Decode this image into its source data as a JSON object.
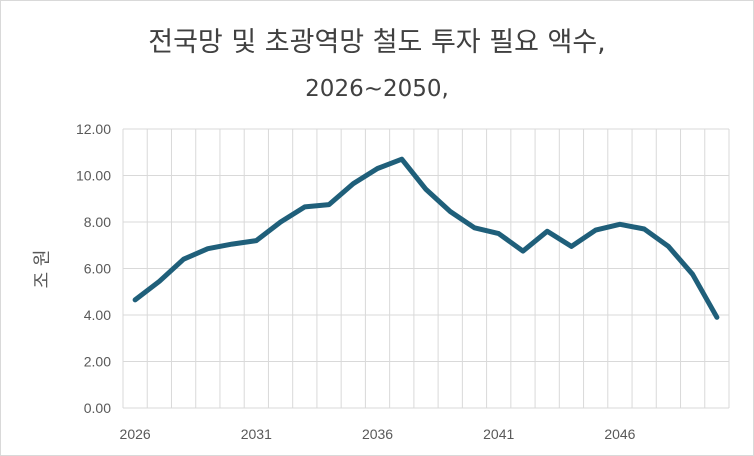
{
  "chart_data": {
    "type": "line",
    "title": "전국망 및 초광역망 철도 투자 필요 액수,",
    "subtitle": "2026~2050,",
    "xlabel": "",
    "ylabel": "조 원",
    "ylim": [
      0,
      12
    ],
    "yticks": [
      "0.00",
      "2.00",
      "4.00",
      "6.00",
      "8.00",
      "10.00",
      "12.00"
    ],
    "xtick_labels": [
      "2026",
      "2031",
      "2036",
      "2041",
      "2046"
    ],
    "grid": true,
    "line_color": "#1f5f7a",
    "x": [
      2026,
      2027,
      2028,
      2029,
      2030,
      2031,
      2032,
      2033,
      2034,
      2035,
      2036,
      2037,
      2038,
      2039,
      2040,
      2041,
      2042,
      2043,
      2044,
      2045,
      2046,
      2047,
      2048,
      2049,
      2050
    ],
    "values": [
      4.65,
      5.45,
      6.4,
      6.85,
      7.05,
      7.2,
      8.0,
      8.65,
      8.75,
      9.65,
      10.3,
      10.7,
      9.4,
      8.45,
      7.75,
      7.5,
      6.75,
      7.6,
      6.95,
      7.65,
      7.9,
      7.7,
      6.95,
      5.75,
      3.9
    ]
  }
}
